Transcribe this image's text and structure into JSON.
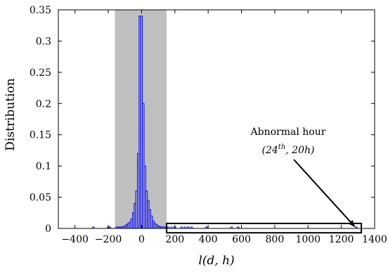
{
  "chart_data": {
    "type": "bar",
    "xlabel": "l(d, h)",
    "ylabel": "Distribution",
    "xlim": [
      -500,
      1400
    ],
    "ylim": [
      0,
      0.35
    ],
    "xticks": [
      -400,
      -200,
      0,
      200,
      400,
      600,
      800,
      1000,
      1200,
      1400
    ],
    "xtick_labels": [
      "−400",
      "−200",
      "0",
      "200",
      "400",
      "600",
      "800",
      "1000",
      "1200",
      "1400"
    ],
    "yticks": [
      0,
      0.05,
      0.1,
      0.15,
      0.2,
      0.25,
      0.3,
      0.35
    ],
    "ytick_labels": [
      "0",
      "0.05",
      "0.1",
      "0.15",
      "0.2",
      "0.25",
      "0.3",
      "0.35"
    ],
    "bin_width": 10,
    "colors": {
      "bars": "#0000ff",
      "shade": "#bfbfbf",
      "axes": "#000000"
    },
    "shaded_region": [
      -160,
      150
    ],
    "bins": [
      {
        "x": -290,
        "y": 0.0015
      },
      {
        "x": -200,
        "y": 0.0015
      },
      {
        "x": -190,
        "y": 0.0015
      },
      {
        "x": -150,
        "y": 0.0015
      },
      {
        "x": -140,
        "y": 0.002
      },
      {
        "x": -130,
        "y": 0.002
      },
      {
        "x": -120,
        "y": 0.002
      },
      {
        "x": -110,
        "y": 0.003
      },
      {
        "x": -100,
        "y": 0.004
      },
      {
        "x": -90,
        "y": 0.006
      },
      {
        "x": -80,
        "y": 0.008
      },
      {
        "x": -70,
        "y": 0.01
      },
      {
        "x": -60,
        "y": 0.015
      },
      {
        "x": -50,
        "y": 0.025
      },
      {
        "x": -40,
        "y": 0.04
      },
      {
        "x": -30,
        "y": 0.06
      },
      {
        "x": -20,
        "y": 0.12
      },
      {
        "x": -10,
        "y": 0.34
      },
      {
        "x": 0,
        "y": 0.34
      },
      {
        "x": 10,
        "y": 0.2
      },
      {
        "x": 20,
        "y": 0.1
      },
      {
        "x": 30,
        "y": 0.06
      },
      {
        "x": 40,
        "y": 0.045
      },
      {
        "x": 50,
        "y": 0.03
      },
      {
        "x": 60,
        "y": 0.02
      },
      {
        "x": 70,
        "y": 0.012
      },
      {
        "x": 80,
        "y": 0.008
      },
      {
        "x": 90,
        "y": 0.006
      },
      {
        "x": 100,
        "y": 0.004
      },
      {
        "x": 110,
        "y": 0.003
      },
      {
        "x": 120,
        "y": 0.002
      },
      {
        "x": 130,
        "y": 0.002
      },
      {
        "x": 140,
        "y": 0.0015
      },
      {
        "x": 160,
        "y": 0.0015
      },
      {
        "x": 180,
        "y": 0.0015
      },
      {
        "x": 200,
        "y": 0.0015
      },
      {
        "x": 240,
        "y": 0.0015
      },
      {
        "x": 260,
        "y": 0.0015
      },
      {
        "x": 280,
        "y": 0.0015
      },
      {
        "x": 300,
        "y": 0.0015
      },
      {
        "x": 390,
        "y": 0.0015
      },
      {
        "x": 540,
        "y": 0.0015
      },
      {
        "x": 580,
        "y": 0.0015
      },
      {
        "x": 1290,
        "y": 0.0015
      }
    ],
    "annotation": {
      "line1": "Abnormal hour",
      "line2_pre": "(24",
      "line2_sup": "th",
      "line2_post": ", 20h)",
      "arrow_target": [
        1280,
        0.003
      ],
      "box_x": [
        150,
        1320
      ],
      "box_y": [
        -0.007,
        0.008
      ]
    }
  }
}
